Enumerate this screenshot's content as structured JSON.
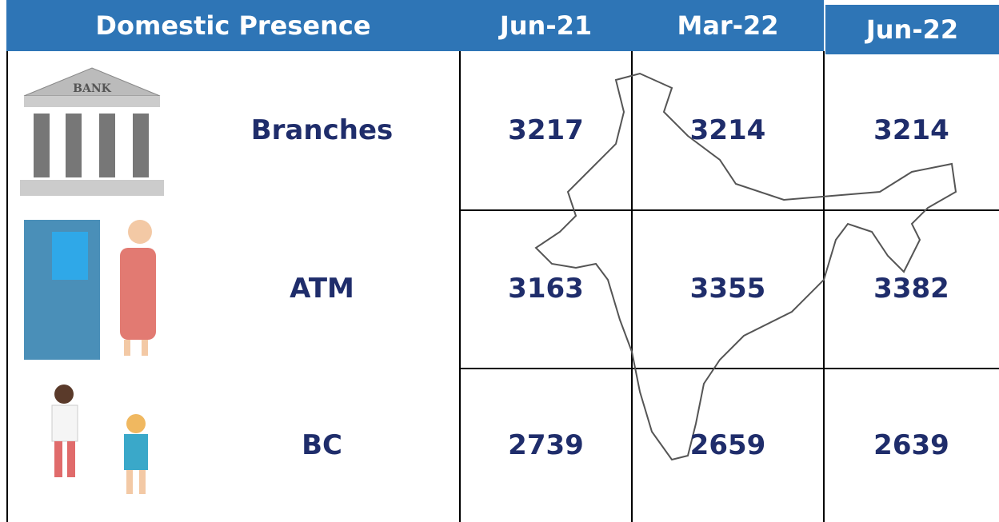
{
  "table": {
    "header": [
      "Domestic Presence",
      "Jun-21",
      "Mar-22",
      "Jun-22"
    ],
    "rows": [
      [
        "Branches",
        "3217",
        "3214",
        "3214"
      ],
      [
        "ATM",
        "3163",
        "3355",
        "3382"
      ],
      [
        "BC",
        "2739",
        "2659",
        "2639"
      ]
    ]
  }
}
